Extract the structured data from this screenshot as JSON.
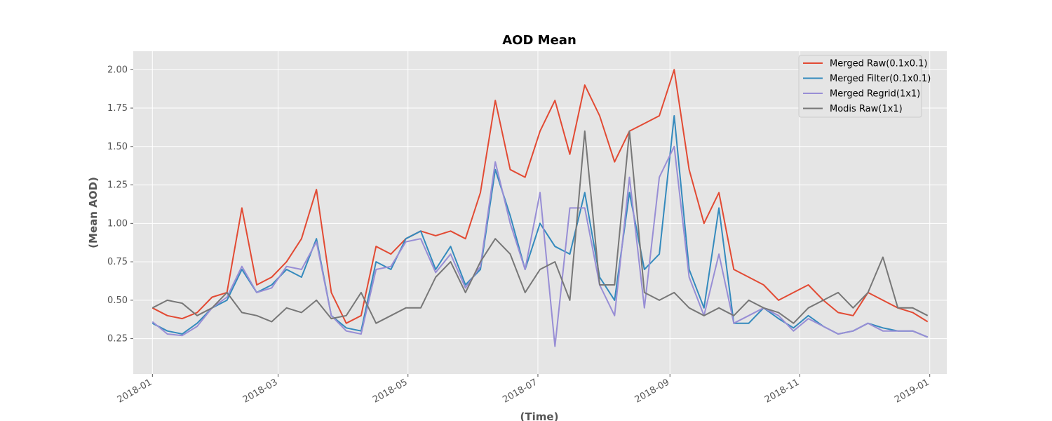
{
  "chart_data": {
    "type": "line",
    "title": "AOD Mean",
    "xlabel": "(Time)",
    "ylabel": "(Mean AOD)",
    "xlim": [
      "2017-12-23",
      "2019-01-09"
    ],
    "ylim": [
      0.02,
      2.12
    ],
    "x_ticks": [
      "2018-01",
      "2018-03",
      "2018-05",
      "2018-07",
      "2018-09",
      "2018-11",
      "2019-01"
    ],
    "y_ticks": [
      "0.25",
      "0.50",
      "0.75",
      "1.00",
      "1.25",
      "1.50",
      "1.75",
      "2.00"
    ],
    "grid": true,
    "legend_position": "top-right",
    "x": [
      "2018-01-01",
      "2018-01-08",
      "2018-01-15",
      "2018-01-22",
      "2018-01-29",
      "2018-02-05",
      "2018-02-12",
      "2018-02-19",
      "2018-02-26",
      "2018-03-05",
      "2018-03-12",
      "2018-03-19",
      "2018-03-26",
      "2018-04-02",
      "2018-04-09",
      "2018-04-16",
      "2018-04-23",
      "2018-04-30",
      "2018-05-07",
      "2018-05-14",
      "2018-05-21",
      "2018-05-28",
      "2018-06-04",
      "2018-06-11",
      "2018-06-18",
      "2018-06-25",
      "2018-07-02",
      "2018-07-09",
      "2018-07-16",
      "2018-07-23",
      "2018-07-30",
      "2018-08-06",
      "2018-08-13",
      "2018-08-20",
      "2018-08-27",
      "2018-09-03",
      "2018-09-10",
      "2018-09-17",
      "2018-09-24",
      "2018-10-01",
      "2018-10-08",
      "2018-10-15",
      "2018-10-22",
      "2018-10-29",
      "2018-11-05",
      "2018-11-12",
      "2018-11-19",
      "2018-11-26",
      "2018-12-03",
      "2018-12-10",
      "2018-12-17",
      "2018-12-24",
      "2018-12-31"
    ],
    "series": [
      {
        "name": "Merged Raw(0.1x0.1)",
        "color": "#E24A33",
        "values": [
          0.45,
          0.4,
          0.38,
          0.42,
          0.52,
          0.55,
          1.1,
          0.6,
          0.65,
          0.75,
          0.9,
          1.22,
          0.55,
          0.35,
          0.4,
          0.85,
          0.8,
          0.9,
          0.95,
          0.92,
          0.95,
          0.9,
          1.2,
          1.8,
          1.35,
          1.3,
          1.6,
          1.8,
          1.45,
          1.9,
          1.7,
          1.4,
          1.6,
          1.65,
          1.7,
          2.0,
          1.35,
          1.0,
          1.2,
          0.7,
          0.65,
          0.6,
          0.5,
          0.55,
          0.6,
          0.5,
          0.42,
          0.4,
          0.55,
          0.5,
          0.45,
          0.42,
          0.36
        ]
      },
      {
        "name": "Merged Filter(0.1x0.1)",
        "color": "#348ABD",
        "values": [
          0.35,
          0.3,
          0.28,
          0.35,
          0.45,
          0.5,
          0.7,
          0.55,
          0.6,
          0.7,
          0.65,
          0.9,
          0.4,
          0.32,
          0.3,
          0.75,
          0.7,
          0.9,
          0.95,
          0.7,
          0.85,
          0.6,
          0.7,
          1.35,
          1.05,
          0.7,
          1.0,
          0.85,
          0.8,
          1.2,
          0.65,
          0.5,
          1.2,
          0.7,
          0.8,
          1.7,
          0.7,
          0.45,
          1.1,
          0.35,
          0.35,
          0.45,
          0.38,
          0.32,
          0.4,
          0.33,
          0.28,
          0.3,
          0.35,
          0.32,
          0.3,
          0.3,
          0.26
        ]
      },
      {
        "name": "Merged Regrid(1x1)",
        "color": "#988ED5",
        "values": [
          0.36,
          0.28,
          0.27,
          0.33,
          0.45,
          0.52,
          0.72,
          0.55,
          0.58,
          0.72,
          0.7,
          0.88,
          0.4,
          0.3,
          0.28,
          0.7,
          0.72,
          0.88,
          0.9,
          0.68,
          0.8,
          0.58,
          0.72,
          1.4,
          1.0,
          0.7,
          1.2,
          0.2,
          1.1,
          1.1,
          0.6,
          0.4,
          1.3,
          0.45,
          1.3,
          1.5,
          0.65,
          0.4,
          0.8,
          0.35,
          0.4,
          0.45,
          0.4,
          0.3,
          0.38,
          0.33,
          0.28,
          0.3,
          0.35,
          0.3,
          0.3,
          0.3,
          0.26
        ]
      },
      {
        "name": "Modis Raw(1x1)",
        "color": "#777777",
        "values": [
          0.45,
          0.5,
          0.48,
          0.4,
          0.45,
          0.55,
          0.42,
          0.4,
          0.36,
          0.45,
          0.42,
          0.5,
          0.38,
          0.4,
          0.55,
          0.35,
          0.4,
          0.45,
          0.45,
          0.65,
          0.75,
          0.55,
          0.75,
          0.9,
          0.8,
          0.55,
          0.7,
          0.75,
          0.5,
          1.6,
          0.6,
          0.6,
          1.6,
          0.55,
          0.5,
          0.55,
          0.45,
          0.4,
          0.45,
          0.4,
          0.5,
          0.45,
          0.42,
          0.35,
          0.45,
          0.5,
          0.55,
          0.45,
          0.55,
          0.78,
          0.45,
          0.45,
          0.4
        ]
      }
    ]
  }
}
